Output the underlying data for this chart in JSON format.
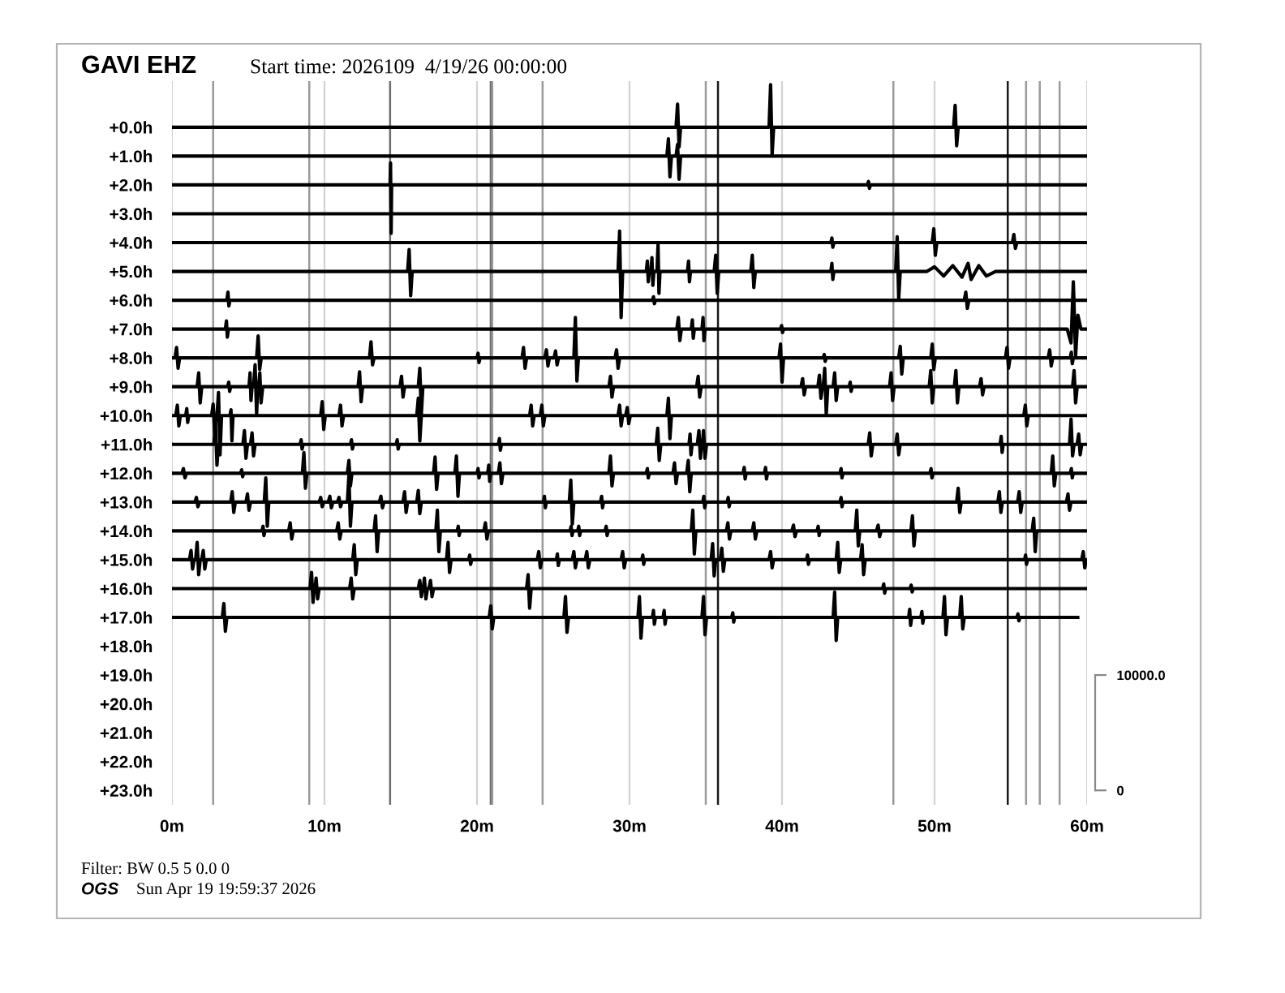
{
  "chart_data": {
    "type": "line",
    "title": "GAVI EHZ",
    "subtitle": "Start time: 2026109  4/19/26 00:00:00",
    "annotations": [
      "Filter: BW 0.5 5 0.0 0",
      "OGS",
      "Sun Apr 19 19:59:37 2026"
    ],
    "xlim": [
      0,
      60
    ],
    "xticks": [
      {
        "value": 0,
        "label": "0m"
      },
      {
        "value": 10,
        "label": "10m"
      },
      {
        "value": 20,
        "label": "20m"
      },
      {
        "value": 30,
        "label": "30m"
      },
      {
        "value": 40,
        "label": "40m"
      },
      {
        "value": 50,
        "label": "50m"
      },
      {
        "value": 60,
        "label": "60m"
      }
    ],
    "ylim": [
      23.5,
      -1.6
    ],
    "yticks": [
      {
        "value": 0,
        "label": "+0.0h"
      },
      {
        "value": 1,
        "label": "+1.0h"
      },
      {
        "value": 2,
        "label": "+2.0h"
      },
      {
        "value": 3,
        "label": "+3.0h"
      },
      {
        "value": 4,
        "label": "+4.0h"
      },
      {
        "value": 5,
        "label": "+5.0h"
      },
      {
        "value": 6,
        "label": "+6.0h"
      },
      {
        "value": 7,
        "label": "+7.0h"
      },
      {
        "value": 8,
        "label": "+8.0h"
      },
      {
        "value": 9,
        "label": "+9.0h"
      },
      {
        "value": 10,
        "label": "+10.0h"
      },
      {
        "value": 11,
        "label": "+11.0h"
      },
      {
        "value": 12,
        "label": "+12.0h"
      },
      {
        "value": 13,
        "label": "+13.0h"
      },
      {
        "value": 14,
        "label": "+14.0h"
      },
      {
        "value": 15,
        "label": "+15.0h"
      },
      {
        "value": 16,
        "label": "+16.0h"
      },
      {
        "value": 17,
        "label": "+17.0h"
      },
      {
        "value": 18,
        "label": "+18.0h"
      },
      {
        "value": 19,
        "label": "+19.0h"
      },
      {
        "value": 20,
        "label": "+20.0h"
      },
      {
        "value": 21,
        "label": "+21.0h"
      },
      {
        "value": 22,
        "label": "+22.0h"
      },
      {
        "value": 23,
        "label": "+23.0h"
      }
    ],
    "y2lim": [
      -1250,
      61500
    ],
    "y2ticks": [
      0,
      {
        "value": 10000,
        "label": "10000.0"
      }
    ],
    "grid": "x",
    "ref_lines": [
      {
        "axis": "x",
        "value": 2.7,
        "color": "#9a9a9a"
      },
      {
        "axis": "x",
        "value": 9.0,
        "color": "#9a9a9a"
      },
      {
        "axis": "x",
        "value": 14.3,
        "color": "#6e6e6e"
      },
      {
        "axis": "x",
        "value": 20.9,
        "color": "#6e6e6e"
      },
      {
        "axis": "x",
        "value": 21.0,
        "color": "#9a9a9a"
      },
      {
        "axis": "x",
        "value": 24.3,
        "color": "#9a9a9a"
      },
      {
        "axis": "x",
        "value": 35.0,
        "color": "#9a9a9a"
      },
      {
        "axis": "x",
        "value": 35.8,
        "color": "#1a1a1a"
      },
      {
        "axis": "x",
        "value": 47.3,
        "color": "#9a9a9a"
      },
      {
        "axis": "x",
        "value": 54.8,
        "color": "#1a1a1a"
      },
      {
        "axis": "x",
        "value": 56.0,
        "color": "#9a9a9a"
      },
      {
        "axis": "x",
        "value": 56.9,
        "color": "#9a9a9a"
      },
      {
        "axis": "x",
        "value": 58.2,
        "color": "#9a9a9a"
      }
    ],
    "series": [
      {
        "color": "#000000",
        "x": [
          0,
          33.05,
          33.15,
          33.25,
          33.35,
          39.15,
          39.25,
          39.35,
          39.45,
          51.25,
          51.35,
          51.45,
          51.55,
          60
        ],
        "values": [
          0,
          0,
          -0.8,
          0.68,
          0,
          0,
          -1.48,
          0.96,
          0,
          0,
          -0.76,
          0.64,
          0,
          0
        ]
      },
      {
        "color": "#000000",
        "x": [
          0,
          32.45,
          32.55,
          32.65,
          32.75,
          33.05,
          33.15,
          33.25,
          33.35,
          60
        ],
        "values": [
          1,
          1,
          0.4,
          1.72,
          1,
          1,
          0.6,
          1.8,
          1,
          1
        ]
      },
      {
        "color": "#000000",
        "x": [
          0,
          14.3,
          14.33,
          14.37,
          14.4,
          45.6,
          45.67,
          45.73,
          45.8,
          60
        ],
        "values": [
          2,
          2,
          1.24,
          3.68,
          2,
          2,
          1.88,
          2.12,
          2,
          2
        ]
      },
      {
        "color": "#000000",
        "x": [
          0,
          60
        ],
        "values": [
          3,
          3
        ]
      },
      {
        "color": "#000000",
        "x": [
          0,
          43.2,
          43.27,
          43.33,
          43.4,
          49.85,
          49.95,
          50.05,
          50.15,
          55.1,
          55.2,
          55.3,
          55.4,
          60
        ],
        "values": [
          4,
          4,
          3.84,
          4.16,
          4,
          4,
          3.52,
          4.44,
          4,
          4,
          3.72,
          4.2,
          4,
          4
        ]
      },
      {
        "color": "#000000",
        "x": [
          0,
          15.45,
          15.55,
          15.65,
          15.75,
          29.25,
          29.35,
          29.45,
          29.55,
          31.1,
          31.17,
          31.23,
          31.3,
          31.4,
          31.47,
          31.53,
          31.6,
          31.8,
          31.87,
          31.93,
          32.0,
          33.8,
          33.87,
          33.93,
          34.0,
          35.55,
          35.65,
          35.75,
          35.85,
          37.95,
          38.05,
          38.15,
          38.25,
          43.2,
          43.27,
          43.33,
          43.4,
          47.45,
          47.55,
          47.65,
          47.75,
          49.5,
          50.0,
          50.6,
          51.2,
          51.8,
          52.2,
          52.4,
          52.9,
          53.4,
          54.0,
          60
        ],
        "values": [
          5,
          5,
          4.24,
          5.84,
          5,
          5,
          3.6,
          6.6,
          5,
          5,
          4.64,
          5.36,
          5,
          5,
          4.52,
          5.48,
          5,
          5,
          4.08,
          5.76,
          5,
          5,
          4.64,
          5.36,
          5,
          5,
          4.44,
          5.76,
          5,
          5,
          4.44,
          5.56,
          5,
          5,
          4.72,
          5.28,
          5,
          5,
          3.8,
          5.96,
          5,
          5,
          4.84,
          5.16,
          4.8,
          5.2,
          4.72,
          5.28,
          4.8,
          5.16,
          5,
          5
        ]
      },
      {
        "color": "#000000",
        "x": [
          0,
          3.6,
          3.67,
          3.73,
          3.8,
          31.5,
          31.57,
          31.63,
          31.7,
          51.95,
          52.05,
          52.15,
          52.25,
          60
        ],
        "values": [
          6,
          6,
          5.72,
          6.2,
          6,
          6,
          5.88,
          6.12,
          6,
          6,
          5.72,
          6.28,
          6,
          6
        ]
      },
      {
        "color": "#000000",
        "x": [
          0,
          3.5,
          3.57,
          3.63,
          3.7,
          33.1,
          33.2,
          33.3,
          33.4,
          34.05,
          34.12,
          34.18,
          34.25,
          34.75,
          34.82,
          34.88,
          34.95,
          39.9,
          39.97,
          40.03,
          40.1,
          58.7,
          58.95,
          59.1,
          59.25,
          59.4,
          59.6,
          60
        ],
        "values": [
          7,
          7,
          6.72,
          7.28,
          7,
          7,
          6.6,
          7.4,
          7,
          7,
          6.68,
          7.32,
          7,
          7,
          6.6,
          7.4,
          7,
          7,
          6.88,
          7.12,
          7,
          7,
          7.48,
          5.36,
          7.92,
          6.52,
          7,
          7
        ]
      },
      {
        "color": "#000000",
        "x": [
          0,
          0.2,
          0.3,
          0.4,
          0.5,
          5.55,
          5.65,
          5.75,
          5.85,
          12.95,
          13.05,
          13.15,
          13.25,
          20.0,
          20.07,
          20.13,
          20.2,
          22.95,
          23.05,
          23.15,
          23.25,
          24.45,
          24.55,
          24.65,
          24.75,
          25.05,
          25.15,
          25.25,
          25.35,
          26.35,
          26.45,
          26.55,
          26.65,
          29.05,
          29.15,
          29.25,
          29.35,
          39.8,
          39.9,
          40.0,
          40.1,
          42.7,
          42.77,
          42.83,
          42.9,
          47.65,
          47.75,
          47.85,
          47.95,
          49.75,
          49.85,
          49.95,
          50.05,
          54.65,
          54.75,
          54.85,
          54.95,
          57.45,
          57.55,
          57.65,
          57.75,
          58.9,
          58.97,
          59.03,
          59.1,
          60
        ],
        "values": [
          8,
          8,
          7.64,
          8.36,
          8,
          8,
          7.24,
          8.4,
          8,
          8,
          7.44,
          8.24,
          8,
          8,
          7.84,
          8.16,
          8,
          8,
          7.64,
          8.36,
          8,
          8,
          7.72,
          8.28,
          8,
          8,
          7.76,
          8.24,
          8,
          8,
          6.6,
          8.8,
          8,
          8,
          7.72,
          8.36,
          8,
          8,
          7.52,
          8.84,
          8,
          8,
          7.88,
          8.12,
          8,
          8,
          7.6,
          8.56,
          8,
          8,
          7.52,
          8.4,
          8,
          8,
          7.64,
          8.36,
          8,
          8,
          7.72,
          8.28,
          8,
          8,
          7.8,
          8.2,
          8,
          8
        ]
      },
      {
        "color": "#000000",
        "x": [
          0,
          1.65,
          1.75,
          1.85,
          1.95,
          3.65,
          3.72,
          3.78,
          3.85,
          5.05,
          5.12,
          5.18,
          5.25,
          5.35,
          5.45,
          5.55,
          5.62,
          5.68,
          5.76,
          5.84,
          5.95,
          12.2,
          12.3,
          12.4,
          12.5,
          14.95,
          15.05,
          15.15,
          15.25,
          16.15,
          16.25,
          16.35,
          16.45,
          28.65,
          28.75,
          28.85,
          28.95,
          34.4,
          34.5,
          34.6,
          34.7,
          41.25,
          41.35,
          41.45,
          41.55,
          42.35,
          42.45,
          42.55,
          42.65,
          42.7,
          42.8,
          42.9,
          43.0,
          43.35,
          43.45,
          43.55,
          43.65,
          44.4,
          44.47,
          44.53,
          44.6,
          47.05,
          47.15,
          47.25,
          47.35,
          49.65,
          49.75,
          49.85,
          49.95,
          51.3,
          51.4,
          51.5,
          51.6,
          52.95,
          53.05,
          53.15,
          53.25,
          59.05,
          59.15,
          59.25,
          59.35,
          60
        ],
        "values": [
          9,
          9,
          8.52,
          9.56,
          9,
          9,
          8.84,
          9.16,
          9,
          9,
          8.52,
          9.48,
          9,
          9,
          8.24,
          9.96,
          9,
          9,
          8.52,
          9.56,
          9,
          9,
          8.48,
          9.52,
          9,
          9,
          8.64,
          9.36,
          9,
          9,
          8.36,
          9.96,
          9,
          9,
          8.64,
          9.36,
          9,
          9,
          8.64,
          9.36,
          9,
          9,
          8.72,
          9.28,
          9,
          9,
          8.6,
          9.4,
          9,
          9,
          8.36,
          9.96,
          9,
          9,
          8.52,
          9.48,
          9,
          9,
          8.84,
          9.16,
          9,
          9,
          8.52,
          9.48,
          9,
          9,
          8.44,
          9.56,
          9,
          9,
          8.44,
          9.56,
          9,
          9,
          8.72,
          9.28,
          9,
          9,
          8.44,
          9.56,
          9,
          9
        ]
      },
      {
        "color": "#000000",
        "x": [
          0,
          0.25,
          0.35,
          0.45,
          0.55,
          0.9,
          0.97,
          1.03,
          1.1,
          2.6,
          2.7,
          2.8,
          2.9,
          2.95,
          3.05,
          3.15,
          3.25,
          3.8,
          3.87,
          3.93,
          4.0,
          9.75,
          9.85,
          9.95,
          10.05,
          10.95,
          11.05,
          11.15,
          11.25,
          16.05,
          16.15,
          16.25,
          16.35,
          23.45,
          23.55,
          23.65,
          23.75,
          24.15,
          24.25,
          24.35,
          24.45,
          29.25,
          29.35,
          29.45,
          29.55,
          29.75,
          29.85,
          29.95,
          30.05,
          32.45,
          32.55,
          32.65,
          32.75,
          55.85,
          55.95,
          56.05,
          56.15,
          60
        ],
        "values": [
          10,
          10,
          9.64,
          10.36,
          10,
          10,
          9.76,
          10.24,
          10,
          10,
          9.6,
          10.6,
          10,
          10,
          9.2,
          11.36,
          10,
          10,
          9.8,
          10.88,
          10,
          10,
          9.52,
          10.48,
          10,
          10,
          9.64,
          10.36,
          10,
          10,
          9.4,
          10.88,
          10,
          10,
          9.64,
          10.36,
          10,
          10,
          9.64,
          10.36,
          10,
          10,
          9.64,
          10.36,
          10,
          10,
          9.72,
          10.28,
          10,
          10,
          9.4,
          10.8,
          10,
          10,
          9.64,
          10.36,
          10,
          10
        ]
      },
      {
        "color": "#000000",
        "x": [
          0,
          2.75,
          2.85,
          2.95,
          3.05,
          4.65,
          4.75,
          4.85,
          4.95,
          5.15,
          5.25,
          5.35,
          5.45,
          8.4,
          8.47,
          8.53,
          8.6,
          11.7,
          11.77,
          11.83,
          11.9,
          14.7,
          14.77,
          14.83,
          14.9,
          21.4,
          21.47,
          21.53,
          21.6,
          31.75,
          31.85,
          31.95,
          32.05,
          33.9,
          33.97,
          34.03,
          34.1,
          34.45,
          34.55,
          34.65,
          34.72,
          34.78,
          34.85,
          34.95,
          35.05,
          45.65,
          45.75,
          45.85,
          45.95,
          47.45,
          47.55,
          47.65,
          47.75,
          54.3,
          54.37,
          54.43,
          54.5,
          58.85,
          58.95,
          59.05,
          59.15,
          59.35,
          59.45,
          59.55,
          59.65,
          60
        ],
        "values": [
          11,
          11,
          10.28,
          11.72,
          11,
          11,
          10.52,
          11.48,
          11,
          11,
          10.6,
          11.4,
          11,
          11,
          10.84,
          11.16,
          11,
          11,
          10.84,
          11.16,
          11,
          11,
          10.84,
          11.16,
          11,
          11,
          10.8,
          11.2,
          11,
          11,
          10.44,
          11.56,
          11,
          11,
          10.64,
          11.36,
          11,
          11,
          10.52,
          11.48,
          11,
          11,
          10.52,
          11.48,
          11,
          11,
          10.6,
          11.4,
          11,
          11,
          10.64,
          11.36,
          11,
          11,
          10.72,
          11.28,
          11,
          11,
          10.12,
          11.4,
          11,
          11,
          10.64,
          11.36,
          11,
          11
        ]
      },
      {
        "color": "#000000",
        "x": [
          0,
          0.65,
          0.75,
          0.85,
          0.95,
          4.5,
          4.57,
          4.63,
          4.7,
          8.55,
          8.65,
          8.75,
          8.85,
          11.5,
          11.6,
          11.7,
          11.8,
          17.15,
          17.25,
          17.35,
          17.45,
          18.55,
          18.65,
          18.75,
          18.85,
          20.0,
          20.07,
          20.13,
          20.2,
          20.7,
          20.77,
          20.83,
          20.9,
          21.4,
          21.5,
          21.6,
          21.7,
          28.65,
          28.75,
          28.85,
          28.95,
          31.1,
          31.17,
          31.23,
          31.3,
          32.85,
          32.95,
          33.05,
          33.15,
          33.75,
          33.85,
          33.95,
          34.05,
          37.45,
          37.52,
          37.58,
          37.65,
          38.85,
          38.92,
          38.98,
          39.05,
          43.8,
          43.87,
          43.93,
          44.0,
          49.7,
          49.77,
          49.83,
          49.9,
          57.65,
          57.75,
          57.85,
          57.95,
          58.9,
          58.97,
          59.03,
          59.1,
          60
        ],
        "values": [
          12,
          12,
          11.84,
          12.16,
          12,
          12,
          11.88,
          12.12,
          12,
          12,
          11.28,
          12.52,
          12,
          12,
          11.56,
          12.44,
          12,
          12,
          11.44,
          12.56,
          12,
          12,
          11.4,
          12.8,
          12,
          12,
          11.84,
          12.16,
          12,
          12,
          11.72,
          12.28,
          12,
          12,
          11.64,
          12.36,
          12,
          12,
          11.4,
          12.44,
          12,
          12,
          11.84,
          12.16,
          12,
          12,
          11.64,
          12.36,
          12,
          12,
          11.56,
          12.64,
          12,
          12,
          11.8,
          12.2,
          12,
          12,
          11.8,
          12.2,
          12,
          12,
          11.84,
          12.16,
          12,
          12,
          11.84,
          12.16,
          12,
          12,
          11.4,
          12.44,
          12,
          12,
          11.84,
          12.16,
          12,
          12
        ]
      },
      {
        "color": "#000000",
        "x": [
          0,
          1.5,
          1.6,
          1.7,
          1.8,
          3.85,
          3.95,
          4.05,
          4.15,
          4.85,
          4.95,
          5.05,
          5.15,
          6.05,
          6.15,
          6.25,
          6.35,
          9.65,
          9.75,
          9.85,
          9.95,
          10.25,
          10.35,
          10.45,
          10.55,
          10.85,
          10.95,
          11.05,
          11.15,
          11.5,
          11.6,
          11.7,
          11.8,
          13.6,
          13.7,
          13.8,
          13.9,
          15.15,
          15.25,
          15.35,
          15.45,
          16.05,
          16.15,
          16.25,
          16.35,
          24.35,
          24.42,
          24.48,
          24.55,
          26.05,
          26.15,
          26.25,
          26.35,
          28.1,
          28.17,
          28.23,
          28.3,
          34.8,
          34.87,
          34.93,
          35.0,
          36.4,
          36.47,
          36.53,
          36.6,
          43.8,
          43.87,
          43.93,
          44.0,
          51.45,
          51.55,
          51.65,
          51.75,
          54.15,
          54.25,
          54.35,
          54.45,
          55.45,
          55.55,
          55.65,
          55.75,
          58.65,
          58.75,
          58.85,
          58.95,
          60
        ],
        "values": [
          13,
          13,
          12.84,
          13.16,
          13,
          13,
          12.64,
          13.36,
          13,
          13,
          12.72,
          13.28,
          13,
          13,
          12.16,
          13.84,
          13,
          13,
          12.84,
          13.16,
          13,
          13,
          12.8,
          13.2,
          13,
          13,
          12.84,
          13.16,
          13,
          13,
          12.08,
          13.84,
          13,
          13,
          12.8,
          13.2,
          13,
          13,
          12.64,
          13.36,
          13,
          13,
          12.6,
          13.4,
          13,
          13,
          12.8,
          13.2,
          13,
          13,
          12.24,
          13.76,
          13,
          13,
          12.8,
          13.2,
          13,
          13,
          12.8,
          13.2,
          13,
          13,
          12.84,
          13.16,
          13,
          13,
          12.84,
          13.16,
          13,
          13,
          12.52,
          13.36,
          13,
          13,
          12.64,
          13.36,
          13,
          13,
          12.64,
          13.36,
          13,
          13,
          12.72,
          13.28,
          13,
          13
        ]
      },
      {
        "color": "#000000",
        "x": [
          0,
          5.9,
          5.97,
          6.03,
          6.1,
          7.65,
          7.75,
          7.85,
          7.95,
          10.8,
          10.9,
          11.0,
          11.1,
          13.25,
          13.35,
          13.45,
          13.55,
          17.3,
          17.4,
          17.5,
          17.6,
          18.7,
          18.77,
          18.83,
          18.9,
          20.45,
          20.55,
          20.65,
          20.75,
          26.1,
          26.17,
          26.23,
          26.3,
          26.6,
          26.67,
          26.73,
          26.8,
          28.4,
          28.47,
          28.53,
          28.6,
          34.05,
          34.15,
          34.25,
          34.35,
          36.35,
          36.45,
          36.55,
          36.65,
          38.05,
          38.15,
          38.25,
          38.35,
          40.65,
          40.75,
          40.85,
          40.95,
          42.3,
          42.37,
          42.43,
          42.5,
          44.8,
          44.9,
          45.0,
          45.1,
          46.2,
          46.3,
          46.4,
          46.5,
          48.45,
          48.55,
          48.65,
          48.75,
          56.4,
          56.5,
          56.6,
          56.7,
          60
        ],
        "values": [
          14,
          14,
          13.84,
          14.16,
          14,
          14,
          13.72,
          14.28,
          14,
          14,
          13.72,
          14.28,
          14,
          14,
          13.48,
          14.72,
          14,
          14,
          13.28,
          14.72,
          14,
          14,
          13.84,
          14.16,
          14,
          14,
          13.72,
          14.28,
          14,
          14,
          13.84,
          14.16,
          14,
          14,
          13.84,
          14.16,
          14,
          14,
          13.84,
          14.16,
          14,
          14,
          13.28,
          14.8,
          14,
          14,
          13.72,
          14.28,
          14,
          14,
          13.72,
          14.28,
          14,
          14,
          13.8,
          14.2,
          14,
          14,
          13.84,
          14.16,
          14,
          14,
          13.28,
          14.52,
          14,
          14,
          13.8,
          14.2,
          14,
          14,
          13.48,
          14.52,
          14,
          14,
          13.56,
          14.72,
          14,
          14
        ]
      },
      {
        "color": "#000000",
        "x": [
          0,
          1.15,
          1.25,
          1.35,
          1.45,
          1.55,
          1.65,
          1.75,
          1.85,
          1.95,
          2.05,
          2.15,
          2.25,
          11.85,
          11.95,
          12.05,
          12.15,
          18.0,
          18.1,
          18.2,
          18.3,
          19.45,
          19.52,
          19.58,
          19.65,
          23.95,
          24.05,
          24.15,
          24.25,
          25.2,
          25.27,
          25.33,
          25.4,
          26.25,
          26.35,
          26.45,
          26.55,
          27.1,
          27.2,
          27.3,
          27.4,
          29.45,
          29.55,
          29.65,
          29.75,
          30.8,
          30.87,
          30.93,
          31.0,
          35.35,
          35.45,
          35.55,
          35.65,
          35.95,
          36.05,
          36.15,
          36.25,
          39.15,
          39.25,
          39.35,
          39.45,
          41.6,
          41.67,
          41.73,
          41.8,
          43.55,
          43.65,
          43.75,
          43.85,
          45.15,
          45.25,
          45.35,
          45.45,
          55.9,
          55.97,
          56.03,
          56.1,
          59.65,
          59.75,
          59.85,
          59.95,
          60
        ],
        "values": [
          15,
          15,
          14.68,
          15.32,
          15,
          15,
          14.4,
          15.52,
          15,
          15,
          14.68,
          15.32,
          15,
          15,
          14.48,
          15.52,
          15,
          15,
          14.4,
          15.44,
          15,
          15,
          14.84,
          15.16,
          15,
          15,
          14.72,
          15.28,
          15,
          15,
          14.8,
          15.2,
          15,
          15,
          14.72,
          15.28,
          15,
          15,
          14.72,
          15.28,
          15,
          15,
          14.72,
          15.28,
          15,
          15,
          14.84,
          15.16,
          15,
          15,
          14.44,
          15.56,
          15,
          15,
          14.6,
          15.4,
          15,
          15,
          14.72,
          15.28,
          15,
          15,
          14.84,
          15.16,
          15,
          15,
          14.4,
          15.44,
          15,
          15,
          14.48,
          15.52,
          15,
          15,
          14.84,
          15.16,
          15,
          15,
          14.72,
          15.28,
          15,
          15
        ]
      },
      {
        "color": "#000000",
        "x": [
          0,
          9.05,
          9.15,
          9.25,
          9.32,
          9.38,
          9.45,
          9.55,
          9.65,
          11.65,
          11.75,
          11.85,
          11.95,
          16.15,
          16.25,
          16.35,
          16.42,
          16.48,
          16.55,
          16.65,
          16.75,
          16.85,
          16.95,
          17.05,
          17.15,
          23.25,
          23.35,
          23.45,
          23.55,
          46.6,
          46.67,
          46.73,
          46.8,
          48.4,
          48.47,
          48.53,
          48.6,
          60
        ],
        "values": [
          16,
          16,
          15.44,
          16.48,
          16,
          16,
          15.64,
          16.36,
          16,
          16,
          15.64,
          16.36,
          16,
          16,
          15.72,
          16.28,
          16,
          16,
          15.64,
          16.36,
          16,
          16,
          15.72,
          16.28,
          16,
          16,
          15.52,
          16.68,
          16,
          16,
          15.84,
          16.16,
          16,
          16,
          15.88,
          16.12,
          16,
          16
        ]
      },
      {
        "color": "#000000",
        "x": [
          0,
          3.3,
          3.4,
          3.5,
          3.6,
          20.8,
          20.9,
          21.0,
          21.1,
          25.7,
          25.8,
          25.9,
          26.0,
          30.55,
          30.65,
          30.75,
          30.85,
          31.5,
          31.57,
          31.63,
          31.7,
          32.2,
          32.27,
          32.33,
          32.4,
          34.75,
          34.85,
          34.95,
          35.05,
          36.7,
          36.77,
          36.83,
          36.9,
          43.35,
          43.45,
          43.55,
          43.65,
          48.3,
          48.37,
          48.43,
          48.5,
          49.1,
          49.17,
          49.23,
          49.3,
          50.55,
          50.65,
          50.75,
          50.85,
          51.65,
          51.75,
          51.85,
          51.95,
          55.4,
          55.47,
          55.53,
          55.6,
          59.5
        ],
        "values": [
          17,
          17,
          16.52,
          17.48,
          17,
          17,
          16.6,
          17.4,
          17,
          17,
          16.28,
          17.52,
          17,
          17,
          16.28,
          17.72,
          17,
          17,
          16.76,
          17.24,
          17,
          17,
          16.76,
          17.24,
          17,
          17,
          16.28,
          17.6,
          17,
          17,
          16.84,
          17.16,
          17,
          17,
          16.12,
          17.8,
          17,
          17,
          16.72,
          17.28,
          17,
          17,
          16.8,
          17.2,
          17,
          17,
          16.28,
          17.6,
          17,
          17,
          16.28,
          17.4,
          17,
          17,
          16.88,
          17.12,
          17,
          17
        ]
      }
    ]
  }
}
